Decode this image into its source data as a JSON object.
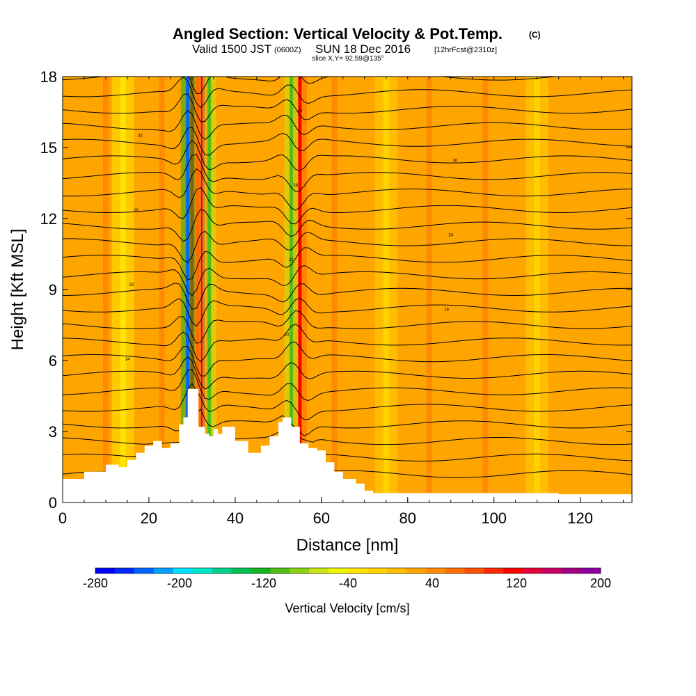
{
  "chart_data": {
    "type": "heatmap",
    "title": "Angled Section: Vertical Velocity & Pot.Temp.",
    "title_unit": "(C)",
    "subtitle_prefix": "Valid 1500 JST",
    "subtitle_zulu": "(0600Z)",
    "subtitle_date": "SUN 18 Dec 2016",
    "subtitle_forecast": "[12hrFcst@2310z]",
    "slice_label": "slice X,Y= 92,59@135°",
    "xlabel": "Distance [nm]",
    "ylabel": "Height [Kft MSL]",
    "xlim": [
      0,
      132
    ],
    "ylim": [
      0,
      18
    ],
    "x_ticks": [
      "0",
      "20",
      "40",
      "60",
      "80",
      "100",
      "120"
    ],
    "y_ticks": [
      "0",
      "3",
      "6",
      "9",
      "12",
      "15",
      "18"
    ],
    "colorbar": {
      "label": "Vertical Velocity [cm/s]",
      "range": [
        -280,
        200
      ],
      "ticks": [
        "-280",
        "-200",
        "-120",
        "-40",
        "40",
        "120",
        "200"
      ],
      "colors": [
        "#0000ff",
        "#0028ff",
        "#0064ff",
        "#00a0ff",
        "#00e1ff",
        "#00e6c8",
        "#00d28c",
        "#00be50",
        "#14b41e",
        "#50be14",
        "#8cd214",
        "#c8e614",
        "#f0f500",
        "#ffe600",
        "#ffd200",
        "#ffbe00",
        "#ffa500",
        "#ff8c00",
        "#ff6e00",
        "#ff5000",
        "#ff2800",
        "#ff0000",
        "#e6003c",
        "#c80064",
        "#a00082",
        "#8c00a0"
      ]
    },
    "background_velocity_cm_s": 20,
    "updraft_bands": [
      {
        "x": 10,
        "value": 40
      },
      {
        "x": 23,
        "value": 40
      },
      {
        "x": 30,
        "value": 110
      },
      {
        "x": 32.5,
        "value": 130
      },
      {
        "x": 55,
        "value": 110
      },
      {
        "x": 63,
        "value": 40
      },
      {
        "x": 85,
        "value": 40
      },
      {
        "x": 98,
        "value": 40
      }
    ],
    "downdraft_bands": [
      {
        "x": 14,
        "value": -40
      },
      {
        "x": 29,
        "value": -230
      },
      {
        "x": 34,
        "value": -110
      },
      {
        "x": 53,
        "value": -110
      },
      {
        "x": 75,
        "value": -20
      },
      {
        "x": 110,
        "value": -20
      }
    ],
    "terrain_profile": {
      "x": [
        0,
        5,
        10,
        13,
        15,
        17,
        19,
        21,
        23,
        25,
        27,
        28,
        29,
        31,
        31.5,
        33,
        34,
        35,
        36,
        37,
        40,
        43,
        46,
        48,
        50,
        51,
        52,
        53,
        55,
        57,
        59,
        61,
        63,
        65,
        68,
        70,
        72,
        100,
        115,
        132
      ],
      "height_kft": [
        1.0,
        1.3,
        1.6,
        1.5,
        1.8,
        2.1,
        2.4,
        2.6,
        2.3,
        2.5,
        3.3,
        3.6,
        4.8,
        4.8,
        3.2,
        2.9,
        2.8,
        3.1,
        2.9,
        3.2,
        2.6,
        2.1,
        2.4,
        2.8,
        3.4,
        3.6,
        3.6,
        3.2,
        2.5,
        2.3,
        2.2,
        1.7,
        1.3,
        1.0,
        0.8,
        0.5,
        0.4,
        0.4,
        0.35,
        0.3
      ]
    },
    "isentrope_count": 25,
    "contour_labels": [
      "14",
      "16",
      "18",
      "20",
      "22",
      "24",
      "26",
      "28",
      "30",
      "32",
      "34"
    ]
  }
}
